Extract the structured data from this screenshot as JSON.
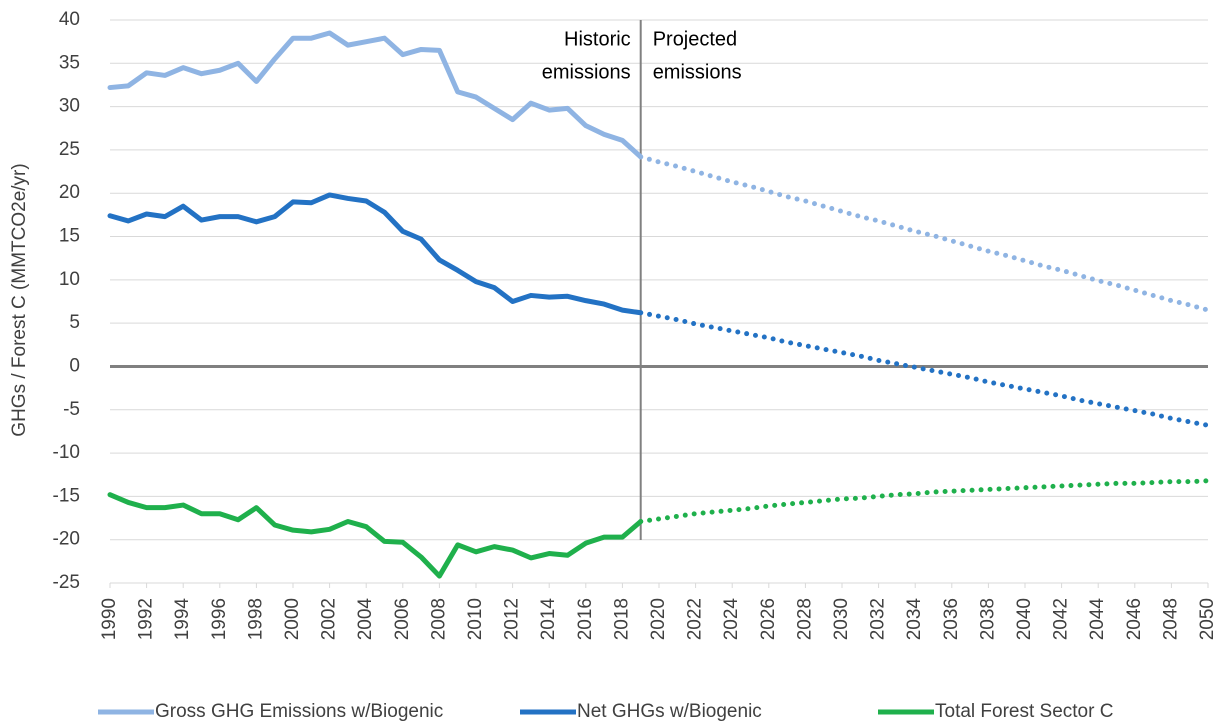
{
  "chart_data": {
    "type": "line",
    "y_axis_label": "GHGs / Forest C (MMTCO2e/yr)",
    "x": [
      1990,
      1991,
      1992,
      1993,
      1994,
      1995,
      1996,
      1997,
      1998,
      1999,
      2000,
      2001,
      2002,
      2003,
      2004,
      2005,
      2006,
      2007,
      2008,
      2009,
      2010,
      2011,
      2012,
      2013,
      2014,
      2015,
      2016,
      2017,
      2018,
      2019,
      2020,
      2021,
      2022,
      2023,
      2024,
      2025,
      2026,
      2027,
      2028,
      2029,
      2030,
      2031,
      2032,
      2033,
      2034,
      2035,
      2036,
      2037,
      2038,
      2039,
      2040,
      2041,
      2042,
      2043,
      2044,
      2045,
      2046,
      2047,
      2048,
      2049,
      2050
    ],
    "xlim": [
      1990,
      2050
    ],
    "xticks": [
      1990,
      1992,
      1994,
      1996,
      1998,
      2000,
      2002,
      2004,
      2006,
      2008,
      2010,
      2012,
      2014,
      2016,
      2018,
      2020,
      2022,
      2024,
      2026,
      2028,
      2030,
      2032,
      2034,
      2036,
      2038,
      2040,
      2042,
      2044,
      2046,
      2048,
      2050
    ],
    "ylim": [
      -25,
      40
    ],
    "yticks": [
      -25,
      -20,
      -15,
      -10,
      -5,
      0,
      5,
      10,
      15,
      20,
      25,
      30,
      35,
      40
    ],
    "grid": true,
    "divider_x": 2019,
    "annotations": [
      {
        "lines": [
          "Historic",
          "emissions"
        ]
      },
      {
        "lines": [
          "Projected",
          "emissions"
        ]
      }
    ],
    "legend": "bottom",
    "series": [
      {
        "name": "Gross GHG Emissions w/Biogenic",
        "color": "#8fb4e3",
        "values": [
          32.2,
          32.4,
          33.9,
          33.6,
          34.5,
          33.8,
          34.2,
          35.0,
          32.9,
          35.5,
          37.9,
          37.9,
          38.5,
          37.1,
          37.5,
          37.9,
          36.0,
          36.6,
          36.5,
          31.7,
          31.1,
          29.8,
          28.5,
          30.4,
          29.6,
          29.8,
          27.8,
          26.8,
          26.1,
          24.2,
          23.6,
          23.1,
          22.5,
          21.9,
          21.3,
          20.8,
          20.2,
          19.6,
          19.1,
          18.5,
          17.9,
          17.3,
          16.8,
          16.2,
          15.6,
          15.1,
          14.5,
          13.9,
          13.3,
          12.8,
          12.2,
          11.6,
          11.1,
          10.5,
          9.9,
          9.4,
          8.8,
          8.2,
          7.6,
          7.1,
          6.5
        ]
      },
      {
        "name": "Net GHGs w/Biogenic",
        "color": "#2372c4",
        "values": [
          17.4,
          16.8,
          17.6,
          17.3,
          18.5,
          16.9,
          17.3,
          17.3,
          16.7,
          17.3,
          19.0,
          18.9,
          19.8,
          19.4,
          19.1,
          17.8,
          15.6,
          14.7,
          12.3,
          11.1,
          9.8,
          9.1,
          7.5,
          8.2,
          8.0,
          8.1,
          7.6,
          7.2,
          6.5,
          6.2,
          5.8,
          5.4,
          4.9,
          4.5,
          4.1,
          3.7,
          3.3,
          2.8,
          2.4,
          2.0,
          1.6,
          1.2,
          0.7,
          0.3,
          -0.1,
          -0.5,
          -0.9,
          -1.3,
          -1.8,
          -2.2,
          -2.6,
          -3.0,
          -3.4,
          -3.9,
          -4.3,
          -4.7,
          -5.1,
          -5.5,
          -6.0,
          -6.4,
          -6.8
        ]
      },
      {
        "name": "Total Forest Sector C",
        "color": "#1fb04c",
        "values": [
          -14.8,
          -15.7,
          -16.3,
          -16.3,
          -16.0,
          -17.0,
          -17.0,
          -17.7,
          -16.3,
          -18.3,
          -18.9,
          -19.1,
          -18.8,
          -17.9,
          -18.5,
          -20.2,
          -20.3,
          -22.0,
          -24.2,
          -20.6,
          -21.4,
          -20.8,
          -21.2,
          -22.1,
          -21.6,
          -21.8,
          -20.4,
          -19.7,
          -19.7,
          -17.9,
          -17.6,
          -17.3,
          -17.0,
          -16.8,
          -16.6,
          -16.4,
          -16.1,
          -15.9,
          -15.7,
          -15.5,
          -15.3,
          -15.2,
          -15.0,
          -14.8,
          -14.7,
          -14.5,
          -14.4,
          -14.3,
          -14.2,
          -14.1,
          -14.0,
          -13.9,
          -13.8,
          -13.7,
          -13.6,
          -13.5,
          -13.5,
          -13.4,
          -13.3,
          -13.3,
          -13.2
        ]
      }
    ]
  }
}
